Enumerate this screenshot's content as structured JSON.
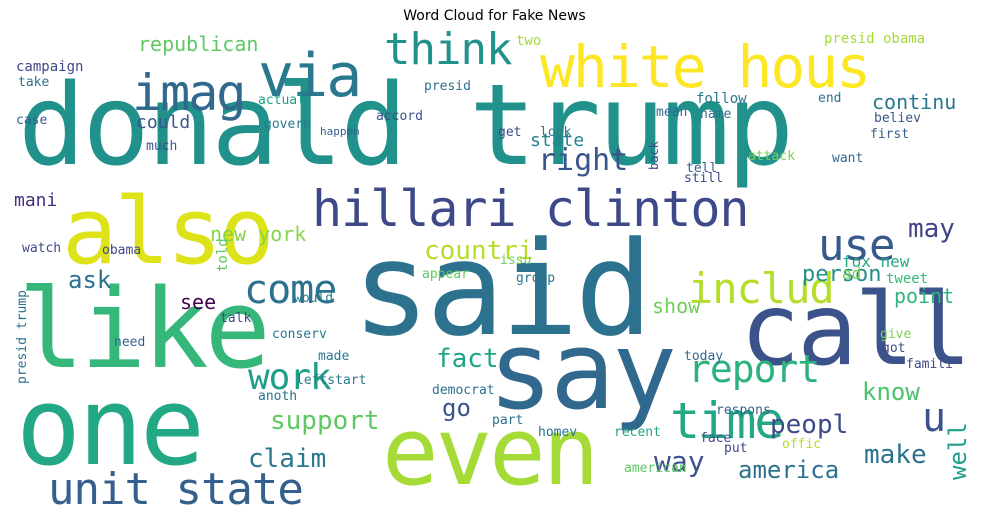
{
  "title": "Word Cloud for Fake News",
  "words": [
    {
      "text": "donald trump",
      "color": "#21918c"
    },
    {
      "text": "said",
      "color": "#2c728e"
    },
    {
      "text": "say",
      "color": "#31688e"
    },
    {
      "text": "one",
      "color": "#22a884"
    },
    {
      "text": "also",
      "color": "#dde318"
    },
    {
      "text": "like",
      "color": "#35b779"
    },
    {
      "text": "even",
      "color": "#a5db36"
    },
    {
      "text": "call",
      "color": "#3b528b"
    },
    {
      "text": "white hous",
      "color": "#fde725"
    },
    {
      "text": "hillari clinton",
      "color": "#3e4989"
    },
    {
      "text": "imag",
      "color": "#31688e"
    },
    {
      "text": "via",
      "color": "#2a788e"
    },
    {
      "text": "think",
      "color": "#21918c"
    },
    {
      "text": "unit state",
      "color": "#355f8d"
    },
    {
      "text": "time",
      "color": "#22a884"
    },
    {
      "text": "report",
      "color": "#2db27d"
    },
    {
      "text": "includ",
      "color": "#b5de2b"
    },
    {
      "text": "use",
      "color": "#38598c"
    },
    {
      "text": "come",
      "color": "#2c728e"
    },
    {
      "text": "work",
      "color": "#1f9e89"
    },
    {
      "text": "u",
      "color": "#3b528b"
    },
    {
      "text": "right",
      "color": "#39568c"
    },
    {
      "text": "countri",
      "color": "#b5de2b"
    },
    {
      "text": "may",
      "color": "#414487"
    },
    {
      "text": "fact",
      "color": "#20a486"
    },
    {
      "text": "know",
      "color": "#4ac16d"
    },
    {
      "text": "claim",
      "color": "#2a788e"
    },
    {
      "text": "make",
      "color": "#2c728e"
    },
    {
      "text": "america",
      "color": "#2c728e"
    },
    {
      "text": "way",
      "color": "#3b528b"
    },
    {
      "text": "support",
      "color": "#5ec962"
    },
    {
      "text": "peopl",
      "color": "#3e4989"
    },
    {
      "text": "ask",
      "color": "#2c728e"
    },
    {
      "text": "go",
      "color": "#3b528b"
    },
    {
      "text": "well",
      "color": "#1f9e89"
    },
    {
      "text": "person",
      "color": "#21918c"
    },
    {
      "text": "republican",
      "color": "#5ec962"
    },
    {
      "text": "continu",
      "color": "#2a788e"
    },
    {
      "text": "new york",
      "color": "#86d549"
    },
    {
      "text": "see",
      "color": "#440154"
    },
    {
      "text": "show",
      "color": "#6ece58"
    },
    {
      "text": "point",
      "color": "#2fb47c"
    },
    {
      "text": "state",
      "color": "#26828e"
    },
    {
      "text": "could",
      "color": "#39568c"
    },
    {
      "text": "mani",
      "color": "#472f7d"
    },
    {
      "text": "fox new",
      "color": "#22a884"
    },
    {
      "text": "ad",
      "color": "#7ad151"
    },
    {
      "text": "tweet",
      "color": "#35b779"
    },
    {
      "text": "presid obama",
      "color": "#a5db36"
    },
    {
      "text": "campaign",
      "color": "#3e4989"
    },
    {
      "text": "actual",
      "color": "#1f9e89"
    },
    {
      "text": "two",
      "color": "#a5db36"
    },
    {
      "text": "follow",
      "color": "#2a788e"
    },
    {
      "text": "end",
      "color": "#2c728e"
    },
    {
      "text": "believ",
      "color": "#39568c"
    },
    {
      "text": "first",
      "color": "#355f8d"
    },
    {
      "text": "want",
      "color": "#31688e"
    },
    {
      "text": "attack",
      "color": "#7ad151"
    },
    {
      "text": "take",
      "color": "#2c728e"
    },
    {
      "text": "presid",
      "color": "#2c728e"
    },
    {
      "text": "case",
      "color": "#355f8d"
    },
    {
      "text": "govern",
      "color": "#2a788e"
    },
    {
      "text": "accord",
      "color": "#3b528b"
    },
    {
      "text": "mean",
      "color": "#31688e"
    },
    {
      "text": "name",
      "color": "#2c728e"
    },
    {
      "text": "much",
      "color": "#3b528b"
    },
    {
      "text": "happen",
      "color": "#355f8d"
    },
    {
      "text": "get",
      "color": "#3e4989"
    },
    {
      "text": "look",
      "color": "#2a788e"
    },
    {
      "text": "tell",
      "color": "#355f8d"
    },
    {
      "text": "still",
      "color": "#3e4989"
    },
    {
      "text": "obama",
      "color": "#3e4989"
    },
    {
      "text": "watch",
      "color": "#3e4989"
    },
    {
      "text": "told",
      "color": "#5ec962"
    },
    {
      "text": "appear",
      "color": "#5ec962"
    },
    {
      "text": "issu",
      "color": "#6ece58"
    },
    {
      "text": "group",
      "color": "#2c728e"
    },
    {
      "text": "would",
      "color": "#2a788e"
    },
    {
      "text": "talk",
      "color": "#3e4989"
    },
    {
      "text": "conserv",
      "color": "#2a788e"
    },
    {
      "text": "made",
      "color": "#2a788e"
    },
    {
      "text": "need",
      "color": "#355f8d"
    },
    {
      "text": "today",
      "color": "#31688e"
    },
    {
      "text": "leftstart",
      "color": "#2a788e"
    },
    {
      "text": "democrat",
      "color": "#2c728e"
    },
    {
      "text": "anoth",
      "color": "#2c728e"
    },
    {
      "text": "part",
      "color": "#2c728e"
    },
    {
      "text": "homev",
      "color": "#2c728e"
    },
    {
      "text": "recent",
      "color": "#22a884"
    },
    {
      "text": "respons",
      "color": "#355f8d"
    },
    {
      "text": "put",
      "color": "#3e4989"
    },
    {
      "text": "face",
      "color": "#3e4989"
    },
    {
      "text": "offic",
      "color": "#b5de2b"
    },
    {
      "text": "american",
      "color": "#5ec962"
    },
    {
      "text": "got",
      "color": "#3e4989"
    },
    {
      "text": "give",
      "color": "#7ad151"
    },
    {
      "text": "famili",
      "color": "#3e4989"
    },
    {
      "text": "presid trump",
      "color": "#2c728e"
    },
    {
      "text": "back",
      "color": "#3e4989"
    },
    {
      "text": "mean",
      "color": "#2c728e"
    }
  ]
}
